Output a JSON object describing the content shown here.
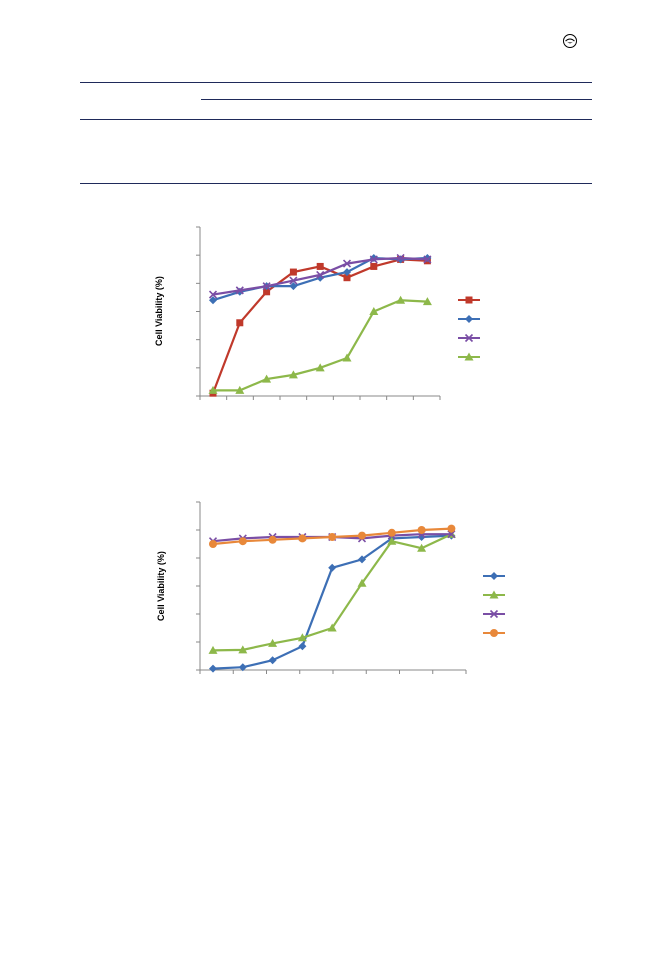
{
  "header": {
    "logo_icon": "circle-emblem-icon"
  },
  "colors": {
    "red": "#c0392b",
    "blue": "#3d6fb5",
    "purple": "#7a4ea5",
    "green": "#8db84a",
    "orange": "#e8883a",
    "rule": "#1f2a5a"
  },
  "chart_data": [
    {
      "type": "line",
      "ylabel": "Cell  Viability (%)",
      "xlabel": "",
      "title": "",
      "ylim": [
        0,
        6
      ],
      "x": [
        1,
        2,
        3,
        4,
        5,
        6,
        7,
        8,
        9
      ],
      "grid": false,
      "legend": "right",
      "series": [
        {
          "color": "#c0392b",
          "marker": "square",
          "values": [
            0.1,
            2.6,
            3.7,
            4.4,
            4.6,
            4.2,
            4.6,
            4.85,
            4.8
          ]
        },
        {
          "color": "#3d6fb5",
          "marker": "diamond",
          "values": [
            3.4,
            3.7,
            3.9,
            3.9,
            4.2,
            4.4,
            4.9,
            4.85,
            4.9
          ]
        },
        {
          "color": "#7a4ea5",
          "marker": "x",
          "values": [
            3.6,
            3.75,
            3.9,
            4.1,
            4.3,
            4.7,
            4.85,
            4.9,
            4.85
          ]
        },
        {
          "color": "#8db84a",
          "marker": "triangle",
          "values": [
            0.2,
            0.2,
            0.6,
            0.75,
            1.0,
            1.35,
            3.0,
            3.4,
            3.35
          ]
        }
      ]
    },
    {
      "type": "line",
      "ylabel": "Cell  Viability (%)",
      "xlabel": "",
      "title": "",
      "ylim": [
        0,
        6
      ],
      "x": [
        1,
        2,
        3,
        4,
        5,
        6,
        7,
        8,
        9
      ],
      "grid": false,
      "legend": "right",
      "series": [
        {
          "color": "#3d6fb5",
          "marker": "diamond",
          "values": [
            0.05,
            0.1,
            0.35,
            0.85,
            3.65,
            3.95,
            4.7,
            4.75,
            4.8
          ]
        },
        {
          "color": "#8db84a",
          "marker": "triangle",
          "values": [
            0.7,
            0.72,
            0.95,
            1.15,
            1.5,
            3.1,
            4.6,
            4.35,
            4.85
          ]
        },
        {
          "color": "#7a4ea5",
          "marker": "x",
          "values": [
            4.6,
            4.7,
            4.75,
            4.75,
            4.75,
            4.7,
            4.8,
            4.85,
            4.85
          ]
        },
        {
          "color": "#e8883a",
          "marker": "circle",
          "values": [
            4.5,
            4.6,
            4.65,
            4.7,
            4.75,
            4.8,
            4.9,
            5.0,
            5.05
          ]
        }
      ]
    }
  ]
}
